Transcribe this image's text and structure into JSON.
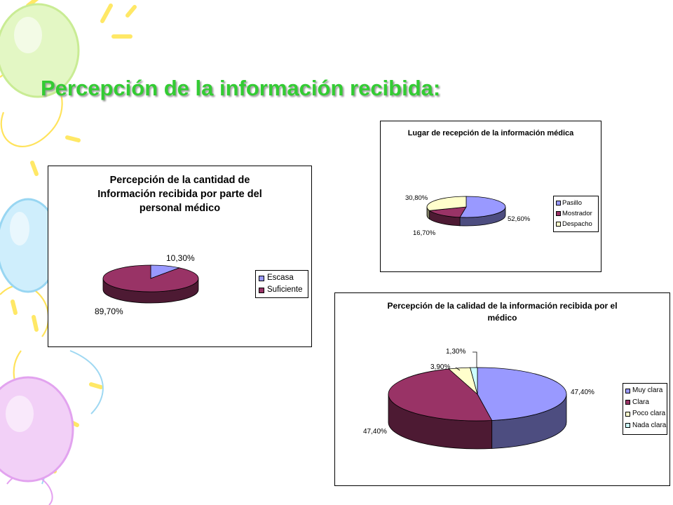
{
  "slide": {
    "title": "Percepción de la información recibida:"
  },
  "colors": {
    "title_green": "#33cc33",
    "series_blue": "#9999ff",
    "series_maroon": "#993366",
    "series_cream": "#ffffcc",
    "series_lightcyan": "#ccffff"
  },
  "chart_data": [
    {
      "type": "pie",
      "title": "Percepción de la cantidad de Información recibida por parte del personal médico",
      "categories": [
        "Escasa",
        "Suficiente"
      ],
      "values": [
        10.3,
        89.7
      ],
      "data_labels": [
        "10,30%",
        "89,70%"
      ],
      "colors": [
        "#9999ff",
        "#993366"
      ],
      "legend": "right"
    },
    {
      "type": "pie",
      "title": "Lugar de recepción de la información médica",
      "categories": [
        "Pasillo",
        "Mostrador",
        "Despacho"
      ],
      "values": [
        52.6,
        16.7,
        30.8
      ],
      "data_labels": [
        "52,60%",
        "16,70%",
        "30,80%"
      ],
      "colors": [
        "#9999ff",
        "#993366",
        "#ffffcc"
      ],
      "legend": "right"
    },
    {
      "type": "pie",
      "title": "Percepción de la calidad de la información recibida por el médico",
      "categories": [
        "Muy clara",
        "Clara",
        "Poco clara",
        "Nada clara"
      ],
      "values": [
        47.4,
        47.4,
        3.9,
        1.3
      ],
      "data_labels": [
        "47,40%",
        "47,40%",
        "3,90%",
        "1,30%"
      ],
      "colors": [
        "#9999ff",
        "#993366",
        "#ffffcc",
        "#ccffff"
      ],
      "legend": "right"
    }
  ]
}
